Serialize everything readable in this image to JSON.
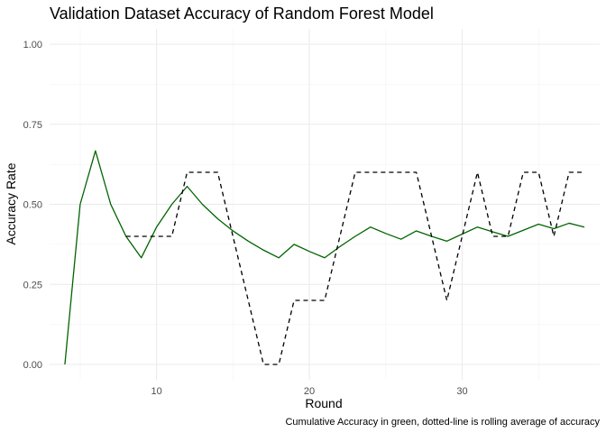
{
  "chart_data": {
    "type": "line",
    "title": "Validation Dataset Accuracy of Random Forest Model",
    "xlabel": "Round",
    "ylabel": "Accuracy Rate",
    "caption": "Cumulative Accuracy in green, dotted-line is rolling average of accuracy",
    "xlim": [
      3,
      39
    ],
    "ylim": [
      0,
      1
    ],
    "x_ticks": [
      10,
      20,
      30
    ],
    "y_ticks": [
      0,
      0.25,
      0.5,
      0.75,
      1
    ],
    "y_tick_labels": [
      "0.00",
      "0.25",
      "0.50",
      "0.75",
      "1.00"
    ],
    "grid": true,
    "legend": "none",
    "series": [
      {
        "color": "#006400",
        "dash": "solid",
        "x": [
          4,
          5,
          6,
          7,
          8,
          9,
          10,
          11,
          12,
          13,
          14,
          15,
          16,
          17,
          18,
          19,
          20,
          21,
          22,
          23,
          24,
          25,
          26,
          27,
          28,
          29,
          30,
          31,
          32,
          33,
          34,
          35,
          36,
          37,
          38
        ],
        "y": [
          0.0,
          0.5,
          0.667,
          0.5,
          0.4,
          0.333,
          0.429,
          0.5,
          0.556,
          0.5,
          0.455,
          0.417,
          0.385,
          0.357,
          0.333,
          0.375,
          0.353,
          0.333,
          0.368,
          0.4,
          0.429,
          0.409,
          0.391,
          0.417,
          0.4,
          0.385,
          0.407,
          0.429,
          0.414,
          0.4,
          0.419,
          0.438,
          0.424,
          0.441,
          0.429
        ]
      },
      {
        "color": "#000000",
        "dash": "dashed",
        "x": [
          8,
          9,
          10,
          11,
          12,
          13,
          14,
          15,
          16,
          17,
          18,
          19,
          20,
          21,
          22,
          23,
          24,
          25,
          26,
          27,
          28,
          29,
          30,
          31,
          32,
          33,
          34,
          35,
          36,
          37,
          38
        ],
        "y": [
          0.4,
          0.4,
          0.4,
          0.4,
          0.6,
          0.6,
          0.6,
          0.4,
          0.2,
          0.0,
          0.0,
          0.2,
          0.2,
          0.2,
          0.4,
          0.6,
          0.6,
          0.6,
          0.6,
          0.6,
          0.4,
          0.2,
          0.4,
          0.6,
          0.4,
          0.4,
          0.6,
          0.6,
          0.4,
          0.6,
          0.6
        ]
      }
    ]
  }
}
